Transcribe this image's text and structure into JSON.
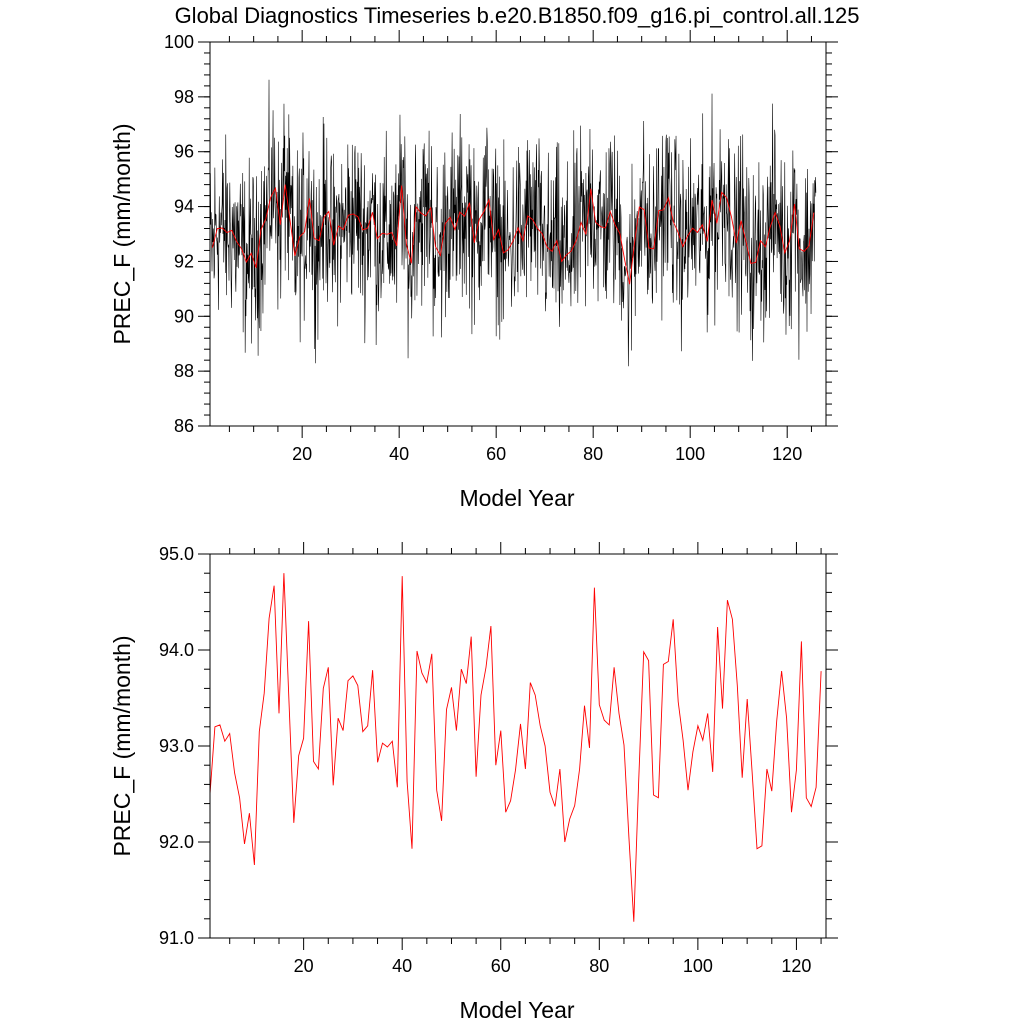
{
  "title": "Global Diagnostics Timeseries b.e20.B1850.f09_g16.pi_control.all.125",
  "colors": {
    "annual": "#ff0000",
    "monthly": "#000000",
    "background": "#ffffff"
  },
  "chart_data": [
    {
      "type": "line",
      "xlabel": "Model Year",
      "ylabel": "PREC_F (mm/month)",
      "xlim": [
        1,
        128
      ],
      "ylim": [
        86,
        100
      ],
      "xticks": [
        20,
        40,
        60,
        80,
        100,
        120
      ],
      "yticks": [
        86,
        88,
        90,
        92,
        94,
        96,
        98,
        100
      ],
      "ytick_labels": [
        "86",
        "88",
        "90",
        "92",
        "94",
        "96",
        "98",
        "100"
      ],
      "series": [
        {
          "color": "#000000",
          "style": "monthly values (dense oscillation)",
          "approx_range": [
            87.2,
            99.3
          ]
        },
        {
          "color": "#ff0000",
          "style": "annual mean",
          "same_as": "lower panel"
        }
      ]
    },
    {
      "type": "line",
      "xlabel": "Model Year",
      "ylabel": "PREC_F (mm/month)",
      "xlim": [
        1,
        126
      ],
      "ylim": [
        91.0,
        95.0
      ],
      "xticks": [
        20,
        40,
        60,
        80,
        100,
        120
      ],
      "yticks": [
        91.0,
        92.0,
        93.0,
        94.0,
        95.0
      ],
      "ytick_labels": [
        "91.0",
        "92.0",
        "93.0",
        "94.0",
        "95.0"
      ],
      "series": [
        {
          "color": "#ff0000",
          "x_start": 1,
          "values": [
            92.5,
            93.2,
            93.22,
            93.05,
            93.13,
            92.72,
            92.46,
            91.98,
            92.3,
            91.76,
            93.15,
            93.55,
            94.33,
            94.67,
            93.34,
            94.8,
            93.51,
            92.2,
            92.9,
            93.08,
            94.3,
            92.84,
            92.76,
            93.6,
            93.82,
            92.59,
            93.29,
            93.16,
            93.68,
            93.73,
            93.63,
            93.15,
            93.21,
            93.79,
            92.83,
            93.03,
            92.99,
            93.05,
            92.57,
            94.77,
            92.63,
            91.93,
            93.99,
            93.76,
            93.66,
            93.96,
            92.54,
            92.22,
            93.38,
            93.61,
            93.16,
            93.8,
            93.65,
            94.14,
            92.68,
            93.53,
            93.82,
            94.25,
            92.8,
            93.16,
            92.31,
            92.43,
            92.75,
            93.23,
            92.76,
            93.66,
            93.53,
            93.21,
            93.0,
            92.52,
            92.37,
            92.76,
            92.0,
            92.24,
            92.38,
            92.76,
            93.42,
            92.98,
            94.65,
            93.43,
            93.27,
            93.22,
            93.82,
            93.34,
            93.01,
            92.05,
            91.17,
            92.64,
            93.98,
            93.89,
            92.49,
            92.46,
            93.85,
            93.88,
            94.32,
            93.46,
            93.06,
            92.54,
            92.94,
            93.21,
            93.06,
            93.34,
            92.73,
            94.24,
            93.39,
            94.52,
            94.32,
            93.63,
            92.67,
            93.49,
            92.73,
            91.93,
            91.96,
            92.76,
            92.53,
            93.26,
            93.78,
            93.29,
            92.31,
            92.75,
            94.09,
            92.46,
            92.37,
            92.57,
            93.78
          ]
        }
      ]
    }
  ]
}
